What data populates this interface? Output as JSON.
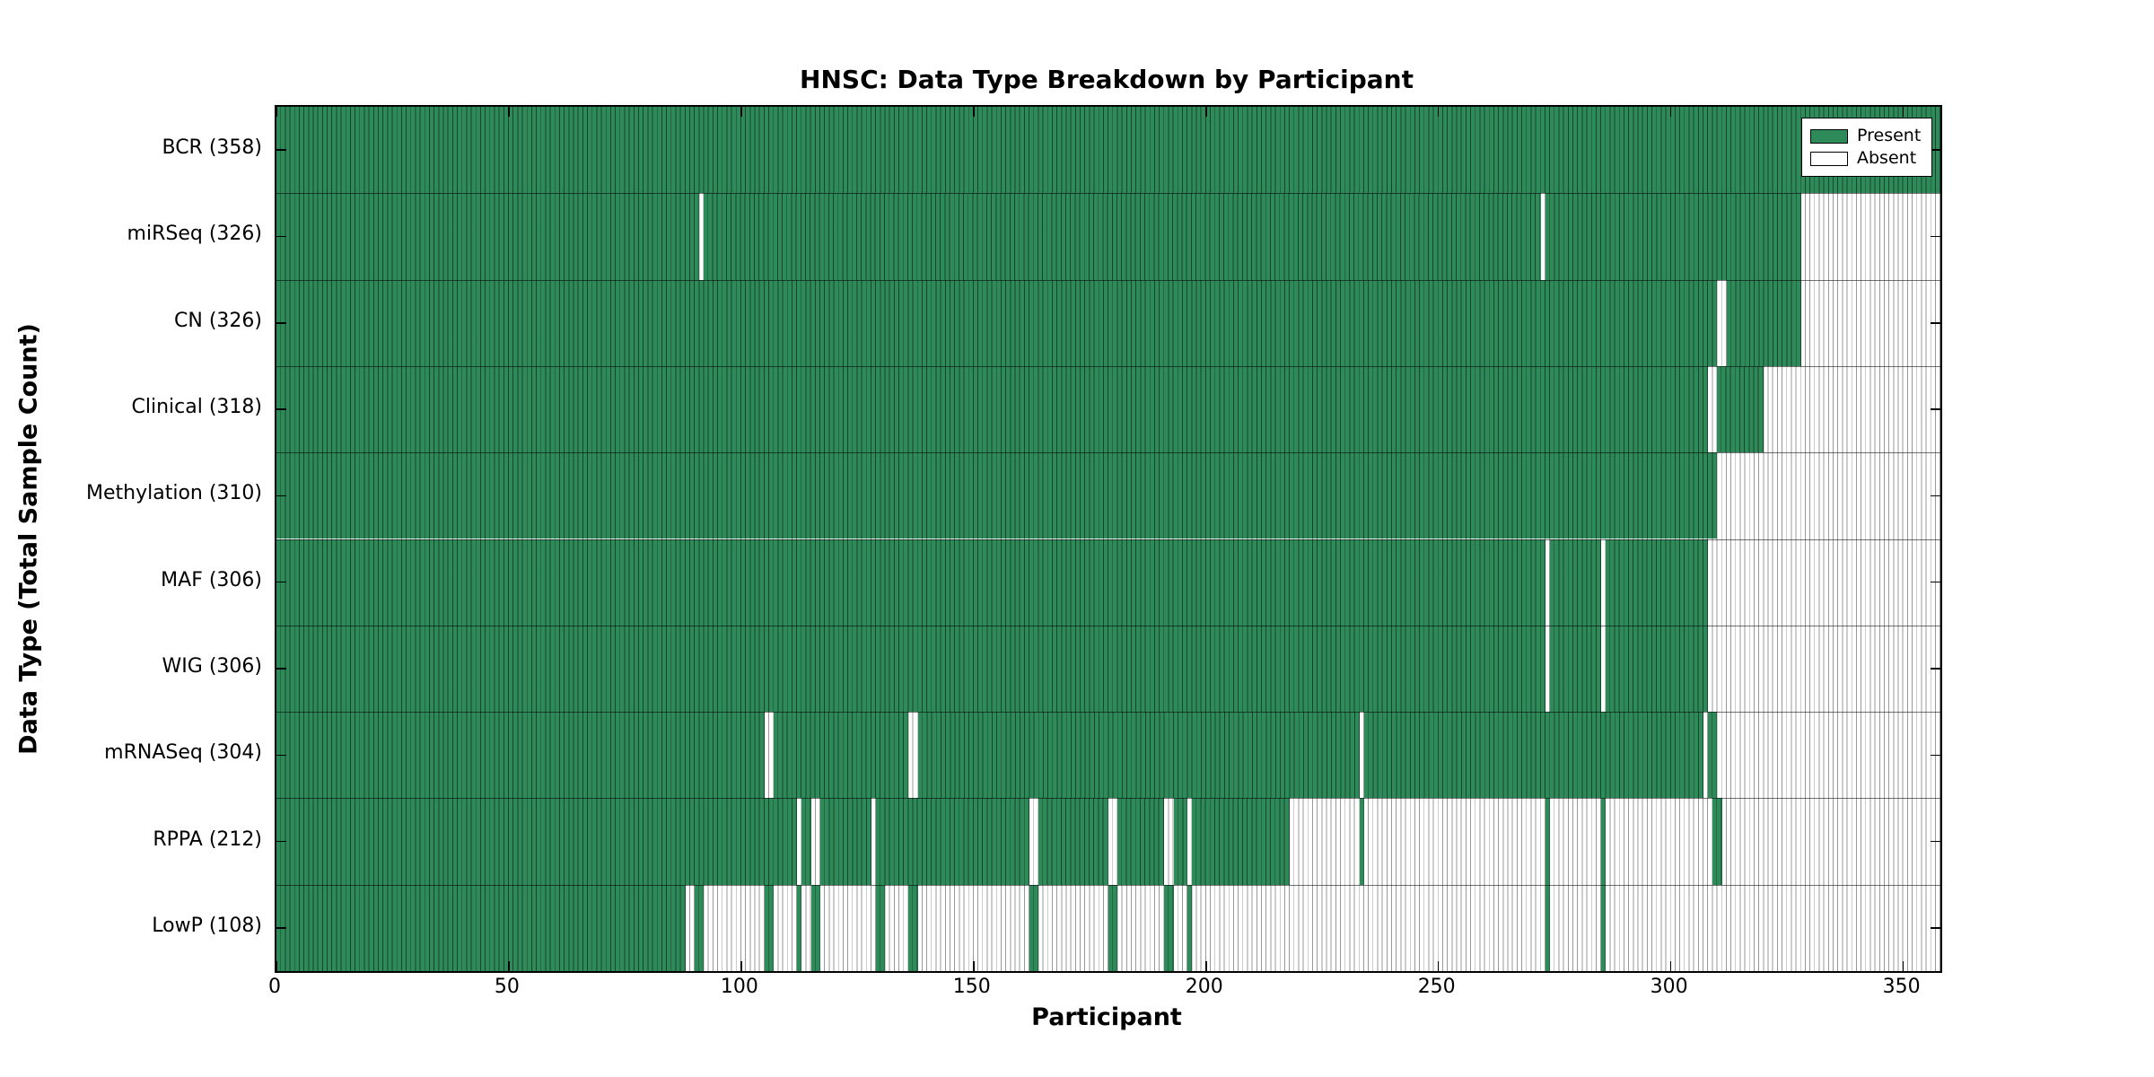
{
  "title": "HNSC: Data Type Breakdown by Participant",
  "chart_data": {
    "type": "heatmap",
    "title": "HNSC: Data Type Breakdown by Participant",
    "xlabel": "Participant",
    "ylabel": "Data Type (Total Sample Count)",
    "xlim": [
      0,
      358
    ],
    "xticks": [
      0,
      50,
      100,
      150,
      200,
      250,
      300,
      350
    ],
    "grid": false,
    "legend": {
      "position": "upper right",
      "entries": [
        {
          "label": "Present",
          "key": "present"
        },
        {
          "label": "Absent",
          "key": "absent"
        }
      ]
    },
    "colors": {
      "present": "#2f8a59",
      "absent": "#ffffff",
      "present_cell_line": "rgba(0,0,0,0.50)",
      "absent_cell_line": "rgba(0,0,0,0.40)",
      "frame": "#000000"
    },
    "rows": [
      {
        "label": "BCR (358)",
        "total": 358,
        "present_ranges": [
          [
            0,
            357
          ]
        ]
      },
      {
        "label": "miRSeq (326)",
        "total": 326,
        "present_ranges": [
          [
            0,
            90
          ],
          [
            92,
            271
          ],
          [
            273,
            327
          ]
        ]
      },
      {
        "label": "CN (326)",
        "total": 326,
        "present_ranges": [
          [
            0,
            309
          ],
          [
            312,
            327
          ]
        ]
      },
      {
        "label": "Clinical (318)",
        "total": 318,
        "present_ranges": [
          [
            0,
            307
          ],
          [
            310,
            319
          ]
        ]
      },
      {
        "label": "Methylation (310)",
        "total": 310,
        "present_ranges": [
          [
            0,
            309
          ]
        ]
      },
      {
        "label": "MAF (306)",
        "total": 306,
        "present_ranges": [
          [
            0,
            272
          ],
          [
            274,
            284
          ],
          [
            286,
            307
          ]
        ]
      },
      {
        "label": "WIG (306)",
        "total": 306,
        "present_ranges": [
          [
            0,
            272
          ],
          [
            274,
            284
          ],
          [
            286,
            307
          ]
        ]
      },
      {
        "label": "mRNASeq (304)",
        "total": 304,
        "present_ranges": [
          [
            0,
            104
          ],
          [
            107,
            135
          ],
          [
            138,
            232
          ],
          [
            234,
            306
          ],
          [
            308,
            309
          ]
        ]
      },
      {
        "label": "RPPA (212)",
        "total": 212,
        "present_ranges": [
          [
            0,
            111
          ],
          [
            113,
            114
          ],
          [
            117,
            127
          ],
          [
            129,
            161
          ],
          [
            164,
            178
          ],
          [
            181,
            190
          ],
          [
            193,
            195
          ],
          [
            197,
            217
          ],
          [
            233,
            233
          ],
          [
            273,
            273
          ],
          [
            285,
            285
          ],
          [
            309,
            310
          ]
        ]
      },
      {
        "label": "LowP (108)",
        "total": 108,
        "present_ranges": [
          [
            0,
            87
          ],
          [
            90,
            91
          ],
          [
            105,
            106
          ],
          [
            112,
            112
          ],
          [
            115,
            116
          ],
          [
            129,
            130
          ],
          [
            136,
            137
          ],
          [
            162,
            163
          ],
          [
            179,
            180
          ],
          [
            191,
            192
          ],
          [
            196,
            196
          ],
          [
            273,
            273
          ],
          [
            285,
            285
          ]
        ]
      }
    ]
  }
}
